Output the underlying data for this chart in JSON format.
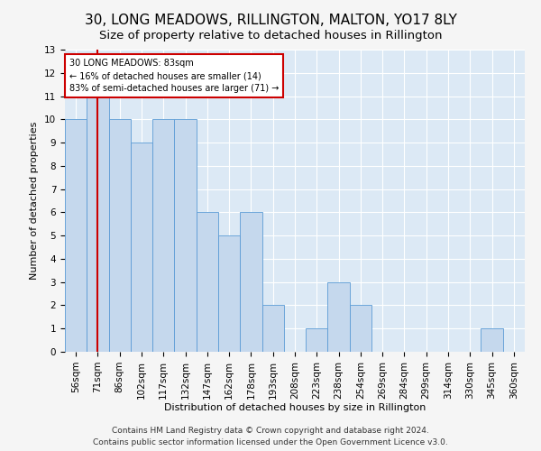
{
  "title": "30, LONG MEADOWS, RILLINGTON, MALTON, YO17 8LY",
  "subtitle": "Size of property relative to detached houses in Rillington",
  "xlabel": "Distribution of detached houses by size in Rillington",
  "ylabel": "Number of detached properties",
  "bins": [
    "56sqm",
    "71sqm",
    "86sqm",
    "102sqm",
    "117sqm",
    "132sqm",
    "147sqm",
    "162sqm",
    "178sqm",
    "193sqm",
    "208sqm",
    "223sqm",
    "238sqm",
    "254sqm",
    "269sqm",
    "284sqm",
    "299sqm",
    "314sqm",
    "330sqm",
    "345sqm",
    "360sqm"
  ],
  "values": [
    10,
    11,
    10,
    9,
    10,
    10,
    6,
    5,
    6,
    2,
    0,
    1,
    3,
    2,
    0,
    0,
    0,
    0,
    0,
    1,
    0
  ],
  "bar_color": "#c5d8ed",
  "bar_edge_color": "#5b9bd5",
  "reference_line_x": 1,
  "annotation_text": "30 LONG MEADOWS: 83sqm\n← 16% of detached houses are smaller (14)\n83% of semi-detached houses are larger (71) →",
  "annotation_box_color": "#ffffff",
  "annotation_box_edge_color": "#cc0000",
  "reference_line_color": "#cc0000",
  "footer_line1": "Contains HM Land Registry data © Crown copyright and database right 2024.",
  "footer_line2": "Contains public sector information licensed under the Open Government Licence v3.0.",
  "ylim": [
    0,
    13
  ],
  "yticks": [
    0,
    1,
    2,
    3,
    4,
    5,
    6,
    7,
    8,
    9,
    10,
    11,
    12,
    13
  ],
  "background_color": "#dce9f5",
  "grid_color": "#ffffff",
  "fig_background": "#f5f5f5",
  "title_fontsize": 11,
  "subtitle_fontsize": 9.5,
  "axis_label_fontsize": 8,
  "tick_fontsize": 7.5,
  "footer_fontsize": 6.5
}
